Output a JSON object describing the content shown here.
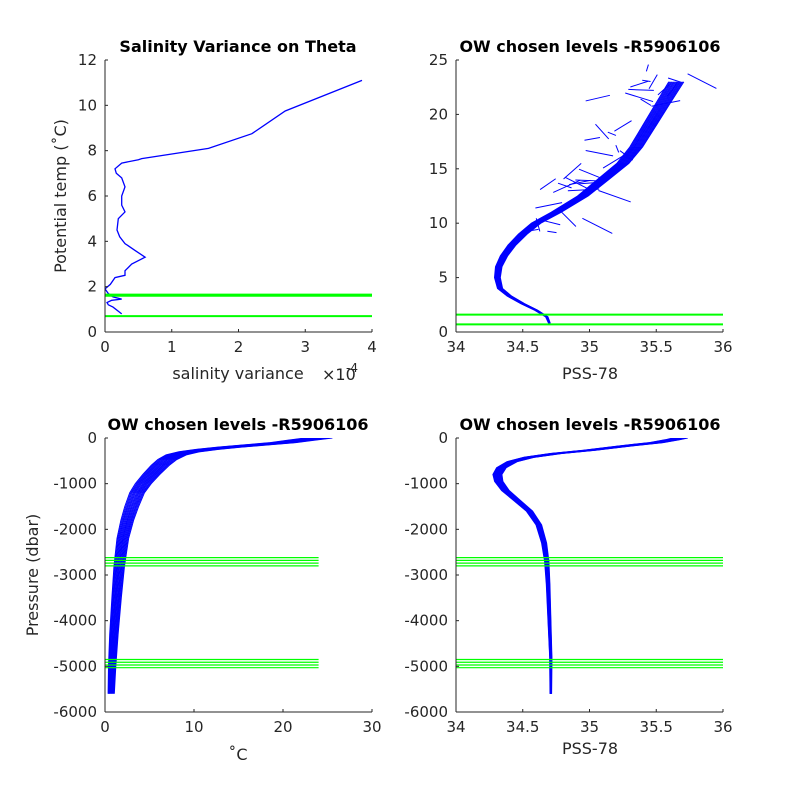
{
  "colors": {
    "profile": "#0000ff",
    "chosen": "#00ff00",
    "axis": "#262626"
  },
  "chart_data": [
    {
      "id": "var",
      "type": "line",
      "title": "Salinity Variance on Theta",
      "xlabel": "salinity variance",
      "x_exponent_base": "×10",
      "x_exponent_power": "-4",
      "ylabel": "Potential temp (˚C)",
      "xlim": [
        0,
        4
      ],
      "ylim": [
        0,
        12
      ],
      "xticks": [
        0,
        1,
        2,
        3,
        4
      ],
      "yticks": [
        0,
        2,
        4,
        6,
        8,
        10,
        12
      ],
      "xtick_labels": [
        "0",
        "1",
        "2",
        "3",
        "4"
      ],
      "ytick_labels": [
        "0",
        "2",
        "4",
        "6",
        "8",
        "10",
        "12"
      ],
      "series": [
        {
          "color": "#0000ff",
          "x": [
            0.25,
            0.12,
            0.05,
            0.03,
            0.1,
            0.25,
            0.12,
            0.05,
            0.0,
            0.08,
            0.15,
            0.3,
            0.3,
            0.4,
            0.6,
            0.45,
            0.3,
            0.22,
            0.18,
            0.2,
            0.3,
            0.25,
            0.25,
            0.3,
            0.25,
            0.17,
            0.15,
            0.25,
            0.5,
            0.55,
            1.55,
            2.2,
            2.7,
            3.85
          ],
          "y": [
            0.8,
            1.1,
            1.2,
            1.3,
            1.4,
            1.45,
            1.55,
            1.7,
            1.9,
            2.1,
            2.4,
            2.5,
            2.7,
            3.0,
            3.3,
            3.6,
            3.9,
            4.2,
            4.5,
            5.0,
            5.3,
            5.6,
            6.0,
            6.4,
            6.8,
            7.0,
            7.2,
            7.45,
            7.6,
            7.65,
            8.1,
            8.75,
            9.75,
            11.1
          ]
        }
      ],
      "hlines": [
        0.7,
        1.6,
        1.65
      ]
    },
    {
      "id": "ts",
      "type": "line",
      "title": "OW chosen levels -R5906106",
      "xlabel": "PSS-78",
      "ylabel": "",
      "xlim": [
        34,
        36
      ],
      "ylim": [
        0,
        25
      ],
      "xticks": [
        34,
        34.5,
        35,
        35.5,
        36
      ],
      "yticks": [
        0,
        5,
        10,
        15,
        20,
        25
      ],
      "xtick_labels": [
        "34",
        "34.5",
        "35",
        "35.5",
        "36"
      ],
      "ytick_labels": [
        "0",
        "5",
        "10",
        "15",
        "20",
        "25"
      ],
      "series": [
        {
          "color": "#0000ff",
          "x": [
            34.7,
            34.68,
            34.6,
            34.5,
            34.4,
            34.33,
            34.31,
            34.32,
            34.36,
            34.42,
            34.5,
            34.6,
            34.75,
            34.95,
            35.1,
            35.25,
            35.35,
            35.45,
            35.55,
            35.65
          ],
          "y": [
            0.8,
            1.4,
            2.0,
            2.6,
            3.3,
            4.0,
            5.0,
            6.0,
            7.0,
            8.0,
            9.0,
            10.0,
            11.0,
            12.5,
            14.0,
            15.5,
            17.0,
            19.0,
            21.0,
            23.0
          ]
        }
      ],
      "hlines": [
        0.7,
        1.6
      ],
      "spread_y_min": 9,
      "spread_y_max": 24
    },
    {
      "id": "tp",
      "type": "line",
      "title": "OW chosen levels -R5906106",
      "xlabel": "˚C",
      "ylabel": "Pressure (dbar)",
      "xlim": [
        0,
        30
      ],
      "ylim": [
        -6000,
        0
      ],
      "xticks": [
        0,
        10,
        20,
        30
      ],
      "yticks": [
        -6000,
        -5000,
        -4000,
        -3000,
        -2000,
        -1000,
        0
      ],
      "xtick_labels": [
        "0",
        "10",
        "20",
        "30"
      ],
      "ytick_labels": [
        "-6000",
        "-5000",
        "-4000",
        "-3000",
        "-2000",
        "-1000",
        "0"
      ],
      "series": [
        {
          "color": "#0000ff",
          "x": [
            0.7,
            0.8,
            1.0,
            1.3,
            1.6,
            2.0,
            2.5,
            3.0,
            3.6,
            4.3,
            5.2,
            6.2,
            7.0,
            8.0,
            9.5,
            11.5,
            14.0,
            17.0,
            20.0,
            22.0,
            24.0
          ],
          "y": [
            -5600,
            -5000,
            -4300,
            -3500,
            -2800,
            -2200,
            -1800,
            -1500,
            -1200,
            -1000,
            -800,
            -600,
            -470,
            -370,
            -300,
            -250,
            -200,
            -150,
            -100,
            -50,
            0
          ]
        }
      ],
      "hlines": [
        -2620,
        -2680,
        -2740,
        -2800,
        -4850,
        -4910,
        -4970,
        -5030
      ]
    },
    {
      "id": "sp",
      "type": "line",
      "title": "OW chosen levels -R5906106",
      "xlabel": "PSS-78",
      "ylabel": "",
      "xlim": [
        34,
        36
      ],
      "ylim": [
        -6000,
        0
      ],
      "xticks": [
        34,
        34.5,
        35,
        35.5,
        36
      ],
      "yticks": [
        -6000,
        -5000,
        -4000,
        -3000,
        -2000,
        -1000,
        0
      ],
      "xtick_labels": [
        "34",
        "34.5",
        "35",
        "35.5",
        "36"
      ],
      "ytick_labels": [
        "-6000",
        "-5000",
        "-4000",
        "-3000",
        "-2000",
        "-1000",
        "0"
      ],
      "series": [
        {
          "color": "#0000ff",
          "x": [
            34.71,
            34.71,
            34.7,
            34.69,
            34.68,
            34.66,
            34.62,
            34.55,
            34.45,
            34.37,
            34.32,
            34.31,
            34.34,
            34.42,
            34.55,
            34.75,
            35.0,
            35.25,
            35.5,
            35.62,
            35.68
          ],
          "y": [
            -5600,
            -4800,
            -4000,
            -3200,
            -2700,
            -2300,
            -1900,
            -1600,
            -1350,
            -1150,
            -950,
            -800,
            -650,
            -520,
            -420,
            -340,
            -270,
            -180,
            -100,
            -40,
            0
          ]
        }
      ],
      "hlines": [
        -2620,
        -2680,
        -2740,
        -2800,
        -4850,
        -4910,
        -4970,
        -5030
      ]
    }
  ]
}
